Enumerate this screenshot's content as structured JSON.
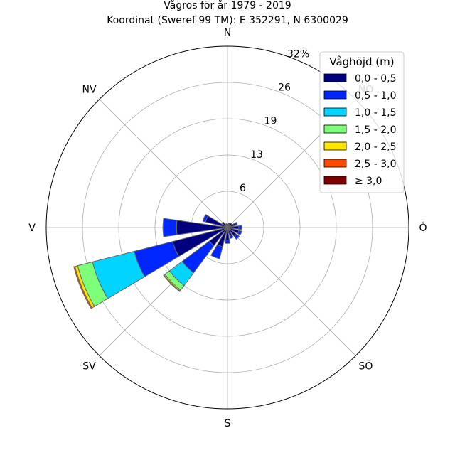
{
  "chart_data": {
    "type": "windrose",
    "title": "Vågros för år 1979 - 2019",
    "subtitle": "Koordinat (Sweref 99 TM): E 352291, N 6300029",
    "directions": [
      "N",
      "NO",
      "Ö",
      "SÖ",
      "S",
      "SV",
      "V",
      "NV"
    ],
    "radial_ticks": [
      "6",
      "13",
      "19",
      "26",
      "32%"
    ],
    "radial_tick_values": [
      6.4,
      12.8,
      19.2,
      25.6,
      32
    ],
    "rmax": 32,
    "legend_title": "Våghöjd (m)",
    "legend_position": "top-right",
    "grid": true,
    "bins": [
      {
        "label": "0,0 - 0,5",
        "color": "#00007f"
      },
      {
        "label": "0,5 - 1,0",
        "color": "#0026ff"
      },
      {
        "label": "1,0 - 1,5",
        "color": "#00d4ff"
      },
      {
        "label": "1,5 - 2,0",
        "color": "#7dff7a"
      },
      {
        "label": "2,0 - 2,5",
        "color": "#ffe600"
      },
      {
        "label": "2,5 - 3,0",
        "color": "#ff4a00"
      },
      {
        "label": "≥ 3,0",
        "color": "#7f0000"
      }
    ],
    "sectors": [
      {
        "dir_deg": 0,
        "values": [
          0.6,
          0,
          0,
          0,
          0,
          0,
          0
        ]
      },
      {
        "dir_deg": 22.5,
        "values": [
          0.8,
          0,
          0,
          0,
          0,
          0,
          0
        ]
      },
      {
        "dir_deg": 45,
        "values": [
          1.0,
          0,
          0,
          0,
          0,
          0,
          0
        ]
      },
      {
        "dir_deg": 67.5,
        "values": [
          1.5,
          0.3,
          0,
          0,
          0,
          0,
          0
        ]
      },
      {
        "dir_deg": 90,
        "values": [
          2.0,
          0.5,
          0,
          0,
          0,
          0,
          0
        ]
      },
      {
        "dir_deg": 112.5,
        "values": [
          2.1,
          0.5,
          0,
          0,
          0,
          0,
          0
        ]
      },
      {
        "dir_deg": 135,
        "values": [
          2.0,
          0.6,
          0,
          0,
          0,
          0,
          0
        ]
      },
      {
        "dir_deg": 157.5,
        "values": [
          1.5,
          0.5,
          0,
          0,
          0,
          0,
          0
        ]
      },
      {
        "dir_deg": 180,
        "values": [
          2.2,
          0.6,
          0,
          0,
          0,
          0,
          0
        ]
      },
      {
        "dir_deg": 202.5,
        "values": [
          3.5,
          2.2,
          0,
          0,
          0,
          0,
          0
        ]
      },
      {
        "dir_deg": 225,
        "values": [
          4.0,
          6.0,
          2.8,
          1.0,
          0.2,
          0.1,
          0
        ]
      },
      {
        "dir_deg": 247.5,
        "values": [
          10.0,
          7.0,
          7.6,
          2.7,
          0.5,
          0.2,
          0
        ]
      },
      {
        "dir_deg": 270,
        "values": [
          9.0,
          2.4,
          0,
          0,
          0,
          0,
          0
        ]
      },
      {
        "dir_deg": 292.5,
        "values": [
          4.0,
          0.5,
          0,
          0,
          0,
          0,
          0
        ]
      },
      {
        "dir_deg": 315,
        "values": [
          1.2,
          0,
          0,
          0,
          0,
          0,
          0
        ]
      },
      {
        "dir_deg": 337.5,
        "values": [
          0.7,
          0,
          0,
          0,
          0,
          0,
          0
        ]
      }
    ]
  }
}
